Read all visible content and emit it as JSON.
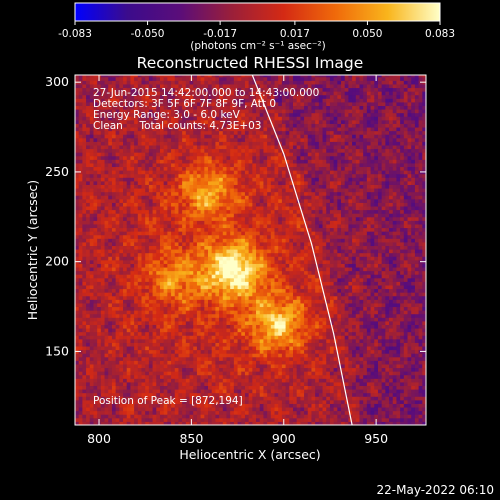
{
  "chart_data": {
    "type": "heatmap",
    "title": "Reconstructed RHESSI Image",
    "xlabel": "Heliocentric X (arcsec)",
    "ylabel": "Heliocentric Y (arcsec)",
    "xlim": [
      787,
      977
    ],
    "ylim": [
      109,
      304
    ],
    "xticks": [
      800,
      850,
      900,
      950
    ],
    "yticks": [
      150,
      200,
      250,
      300
    ],
    "colorbar": {
      "min": -0.083,
      "max": 0.083,
      "ticks": [
        "-0.083",
        "-0.050",
        "-0.017",
        "0.017",
        "0.050",
        "0.083"
      ],
      "unit_label": "(photons cm⁻² s⁻¹ asec⁻²)",
      "colors": [
        "#0000ff",
        "#3b0c8c",
        "#5a0d7a",
        "#9a1f3a",
        "#d42a14",
        "#f06a0a",
        "#f9b51c",
        "#ffffc8"
      ]
    },
    "sources": [
      {
        "name": "peak",
        "x": 872,
        "y": 194,
        "intensity": 0.083
      },
      {
        "x": 896,
        "y": 164,
        "intensity": 0.062
      },
      {
        "x": 858,
        "y": 238,
        "intensity": 0.05
      },
      {
        "x": 840,
        "y": 190,
        "intensity": 0.04
      }
    ],
    "limb_curve": [
      [
        883,
        304
      ],
      [
        900,
        260
      ],
      [
        915,
        210
      ],
      [
        927,
        160
      ],
      [
        937,
        109
      ]
    ],
    "annotations": {
      "time": "27-Jun-2015 14:42:00.000 to 14:43:00.000",
      "detectors": "Detectors: 3F 5F 6F 7F 8F 9F, Att 0",
      "energy": "Energy Range: 3.0 - 6.0 keV",
      "clean": "Clean     Total counts: 4.73E+03",
      "peak": "Position of Peak = [872,194]"
    }
  },
  "timestamp": "22-May-2022 06:10"
}
